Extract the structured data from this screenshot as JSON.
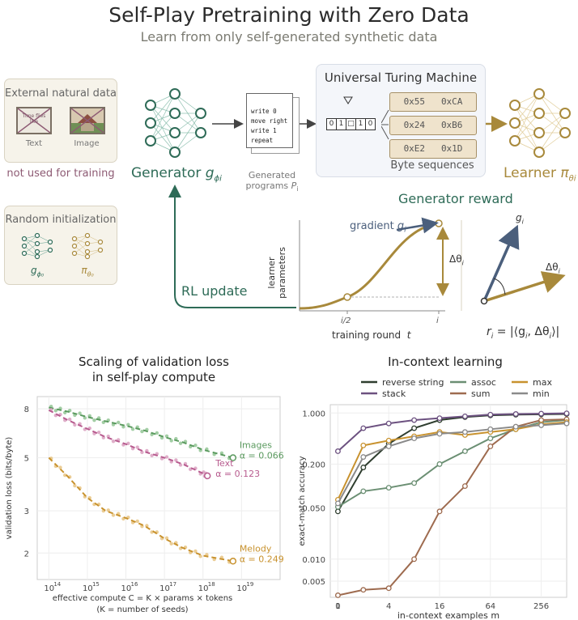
{
  "title": "Self-Play Pretraining with Zero Data",
  "subtitle": "Learn from only self-generated synthetic data",
  "external_panel": {
    "title": "External natural data",
    "text_caption": "Text",
    "image_caption": "Image",
    "thumb_text": "Time flies like",
    "note": "not used for training"
  },
  "random_panel": {
    "title": "Random initialization",
    "gen_label": "g",
    "gen_sub": "ϕ₀",
    "learner_label": "π",
    "learner_sub": "θ₀"
  },
  "generator": {
    "label": "Generator",
    "symbol": "g",
    "sub": "ϕi"
  },
  "programs": {
    "lines": [
      "write 0",
      "move right",
      "write 1",
      "repeat"
    ],
    "caption1": "Generated",
    "caption2": "programs",
    "caption_sym": "P",
    "caption_sub": "i"
  },
  "utm": {
    "title": "Universal Turing Machine",
    "tape": [
      "0",
      "1",
      "□",
      "1",
      "0"
    ],
    "bytes": [
      [
        "0x55",
        "0xCA"
      ],
      [
        "0x24",
        "0xB6"
      ],
      [
        "0xE2",
        "0x1D"
      ]
    ],
    "caption": "Byte sequences"
  },
  "learner": {
    "label": "Learner",
    "symbol": "π",
    "sub": "θi"
  },
  "reward": {
    "title": "Generator reward",
    "ylabel": "learner parameters",
    "xlabel": "training round",
    "xvar": "t",
    "tick_mid": "i/2",
    "tick_end": "i",
    "gradient_label": "gradient",
    "gradient_sym": "g",
    "gradient_sub": "i",
    "delta_label": "Δθ",
    "delta_sub": "i",
    "formula": "r",
    "formula_rest": " = |⟨g",
    "formula_mid": ", Δθ",
    "formula_end": "⟩|"
  },
  "rl": {
    "label": "RL update"
  },
  "scaling": {
    "title1": "Scaling of validation loss",
    "title2": "in self-play compute",
    "ylabel": "validation loss (bits/byte)",
    "xlabel": "effective compute  C = K ×  params × tokens",
    "xlabel2": "(K = number of seeds)",
    "yticks": [
      "8",
      "5",
      "3",
      "2"
    ],
    "xticks": [
      "10",
      "10",
      "10",
      "10",
      "10",
      "10"
    ],
    "xexp": [
      "14",
      "15",
      "16",
      "17",
      "18",
      "19"
    ],
    "colors": {
      "images": "#5b9a5f",
      "text": "#b85c8f",
      "melody": "#c8922e"
    }
  },
  "chart_data": [
    {
      "type": "scatter",
      "title": "Scaling of validation loss in self-play compute",
      "xlabel": "effective compute  C = K ×  params × tokens",
      "ylabel": "validation loss (bits/byte)",
      "xscale": "log",
      "yscale": "log",
      "xlim": [
        50000000000000.0,
        1e+20
      ],
      "ylim": [
        1.55,
        9
      ],
      "grid": true,
      "series": [
        {
          "name": "Images",
          "label": "α = 0.066",
          "x": [
            100000000000000.0,
            300000000000000.0,
            1000000000000000.0,
            3000000000000000.0,
            1e+16,
            3e+16,
            1e+17,
            3e+17,
            1e+18,
            6e+18
          ],
          "y": [
            8.1,
            7.8,
            7.4,
            7.1,
            6.8,
            6.5,
            6.1,
            5.8,
            5.4,
            5.0
          ]
        },
        {
          "name": "Text",
          "label": "α = 0.123",
          "x": [
            100000000000000.0,
            300000000000000.0,
            1000000000000000.0,
            3000000000000000.0,
            1e+16,
            3e+16,
            1e+17,
            3e+17,
            1e+18,
            1.3e+18
          ],
          "y": [
            7.9,
            7.2,
            6.6,
            6.1,
            5.7,
            5.3,
            5.0,
            4.7,
            4.3,
            4.2
          ]
        },
        {
          "name": "Melody",
          "label": "α = 0.249",
          "x": [
            100000000000000.0,
            300000000000000.0,
            1000000000000000.0,
            3000000000000000.0,
            1e+16,
            3e+16,
            1e+17,
            3e+17,
            1e+18,
            6e+18
          ],
          "y": [
            5.0,
            4.2,
            3.4,
            3.0,
            2.8,
            2.6,
            2.3,
            2.1,
            1.95,
            1.85
          ]
        }
      ]
    },
    {
      "type": "line",
      "title": "In-context learning",
      "xlabel": "in-context examples",
      "xvar": "m",
      "ylabel": "exact-match accuracy",
      "yscale": "log",
      "xscale": "symlog",
      "x": [
        0,
        1,
        3,
        7,
        15,
        31,
        63,
        127,
        255,
        511
      ],
      "xticks": [
        "0",
        "1",
        "4",
        "16",
        "64",
        "256"
      ],
      "yticks": [
        "1.000",
        "0.200",
        "0.050",
        "0.010",
        "0.005"
      ],
      "legend": "top",
      "series": [
        {
          "name": "reverse string",
          "color": "#2f3e2f",
          "values": [
            0.045,
            0.18,
            0.38,
            0.62,
            0.8,
            0.88,
            0.93,
            0.95,
            0.96,
            0.97
          ]
        },
        {
          "name": "stack",
          "color": "#6c5180",
          "values": [
            0.3,
            0.62,
            0.72,
            0.8,
            0.85,
            0.9,
            0.95,
            0.97,
            0.98,
            0.99
          ]
        },
        {
          "name": "assoc",
          "color": "#6b8f73",
          "values": [
            0.052,
            0.085,
            0.095,
            0.11,
            0.2,
            0.3,
            0.45,
            0.6,
            0.75,
            0.8
          ]
        },
        {
          "name": "sum",
          "color": "#9e6b4f",
          "values": [
            0.0032,
            0.0038,
            0.004,
            0.01,
            0.045,
            0.1,
            0.35,
            0.65,
            0.8,
            0.82
          ]
        },
        {
          "name": "max",
          "color": "#c8922e",
          "values": [
            0.065,
            0.36,
            0.42,
            0.48,
            0.55,
            0.5,
            0.55,
            0.6,
            0.7,
            0.75
          ]
        },
        {
          "name": "min",
          "color": "#8a8a8a",
          "values": [
            0.058,
            0.25,
            0.35,
            0.45,
            0.52,
            0.55,
            0.6,
            0.65,
            0.68,
            0.72
          ]
        }
      ]
    }
  ]
}
